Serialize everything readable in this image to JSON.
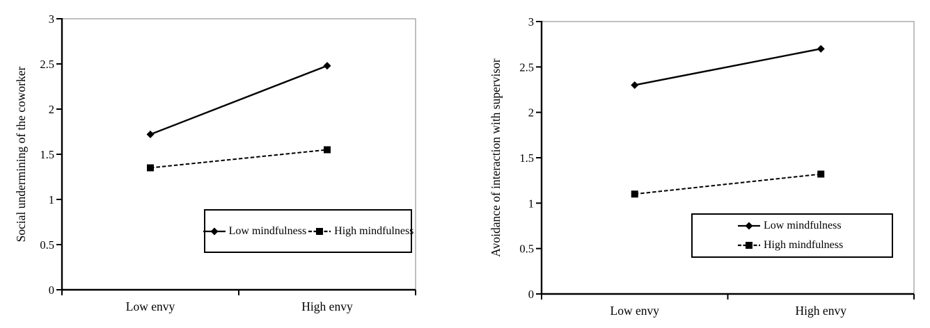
{
  "figure": {
    "description": "Two-panel interaction plot figure, envy x mindfulness",
    "background": "#ffffff"
  },
  "colors": {
    "series": "#000000",
    "axis": "#000000",
    "plot_border": "#a6a6a6",
    "text": "#000000",
    "legend_border": "#000000",
    "background": "#ffffff"
  },
  "chart_data": [
    {
      "type": "line",
      "title": "",
      "xlabel": "",
      "ylabel": "Social undermining of the coworker",
      "categories": [
        "Low envy",
        "High envy"
      ],
      "ylim": [
        0,
        3
      ],
      "yticks": [
        "0",
        "0.5",
        "1",
        "1.5",
        "2",
        "2.5",
        "3"
      ],
      "grid": false,
      "legend_position": "inside-bottom-right",
      "legend_layout": "horizontal",
      "series": [
        {
          "name": "Low mindfulness",
          "values": [
            1.72,
            2.48
          ],
          "line_style": "solid",
          "marker": "diamond",
          "color": "#000000"
        },
        {
          "name": "High mindfulness",
          "values": [
            1.35,
            1.55
          ],
          "line_style": "dashed",
          "marker": "square",
          "color": "#000000"
        }
      ]
    },
    {
      "type": "line",
      "title": "",
      "xlabel": "",
      "ylabel": "Avoidance of interaction with supervisor",
      "categories": [
        "Low envy",
        "High envy"
      ],
      "ylim": [
        0,
        3
      ],
      "yticks": [
        "0",
        "0.5",
        "1",
        "1.5",
        "2",
        "2.5",
        "3"
      ],
      "grid": false,
      "legend_position": "inside-bottom-right",
      "legend_layout": "vertical",
      "series": [
        {
          "name": "Low mindfulness",
          "values": [
            2.3,
            2.7
          ],
          "line_style": "solid",
          "marker": "diamond",
          "color": "#000000"
        },
        {
          "name": "High mindfulness",
          "values": [
            1.1,
            1.32
          ],
          "line_style": "dashed",
          "marker": "square",
          "color": "#000000"
        }
      ]
    }
  ]
}
